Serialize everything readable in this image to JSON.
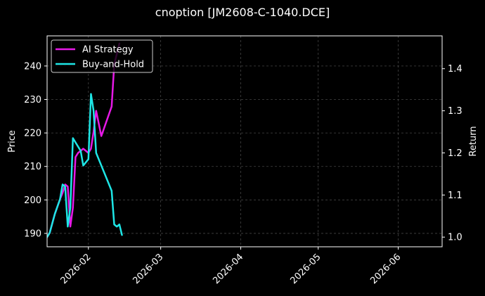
{
  "chart_data": {
    "type": "line",
    "title": "cnoption [JM2608-C-1040.DCE]",
    "xlabel": "",
    "ylabel": "Price",
    "y2label": "Return",
    "xlim": [
      "2026-01-16",
      "2026-06-18"
    ],
    "ylim": [
      186,
      249
    ],
    "y2lim": [
      0.977,
      1.478
    ],
    "x_ticks": [
      "2026-02",
      "2026-03",
      "2026-04",
      "2026-05",
      "2026-06"
    ],
    "y_ticks": [
      190,
      200,
      210,
      220,
      230,
      240
    ],
    "y2_ticks": [
      "1.0",
      "1.1",
      "1.2",
      "1.3",
      "1.4"
    ],
    "y2_tick_values": [
      1.0,
      1.1,
      1.2,
      1.3,
      1.4
    ],
    "grid": true,
    "legend_position": "top-left",
    "series": [
      {
        "name": "AI Strategy",
        "color": "#e619e6",
        "axis": "right",
        "x": [
          "2026-01-16",
          "2026-01-17",
          "2026-01-19",
          "2026-01-21",
          "2026-01-22",
          "2026-01-23",
          "2026-01-24",
          "2026-01-25",
          "2026-01-26",
          "2026-01-27",
          "2026-01-28",
          "2026-01-29",
          "2026-01-30",
          "2026-02-01",
          "2026-02-02",
          "2026-02-03",
          "2026-02-04",
          "2026-02-05",
          "2026-02-06",
          "2026-02-10",
          "2026-02-11",
          "2026-02-13"
        ],
        "values": [
          1.0,
          1.01,
          1.055,
          1.09,
          1.105,
          1.125,
          1.12,
          1.025,
          1.07,
          1.19,
          1.2,
          1.205,
          1.21,
          1.2,
          1.21,
          1.25,
          1.3,
          1.27,
          1.24,
          1.31,
          1.41,
          1.46
        ]
      },
      {
        "name": "Buy-and-Hold",
        "color": "#1ee6e6",
        "axis": "right",
        "x": [
          "2026-01-16",
          "2026-01-17",
          "2026-01-19",
          "2026-01-21",
          "2026-01-22",
          "2026-01-23",
          "2026-01-24",
          "2026-01-25",
          "2026-01-26",
          "2026-01-27",
          "2026-01-28",
          "2026-01-29",
          "2026-01-30",
          "2026-02-01",
          "2026-02-02",
          "2026-02-03",
          "2026-02-04",
          "2026-02-05",
          "2026-02-06",
          "2026-02-10",
          "2026-02-11",
          "2026-02-12",
          "2026-02-13",
          "2026-02-14"
        ],
        "values": [
          1.0,
          1.01,
          1.055,
          1.09,
          1.125,
          1.12,
          1.025,
          1.07,
          1.235,
          1.225,
          1.215,
          1.205,
          1.17,
          1.185,
          1.34,
          1.3,
          1.2,
          1.185,
          1.17,
          1.11,
          1.03,
          1.025,
          1.03,
          1.005
        ]
      }
    ]
  }
}
